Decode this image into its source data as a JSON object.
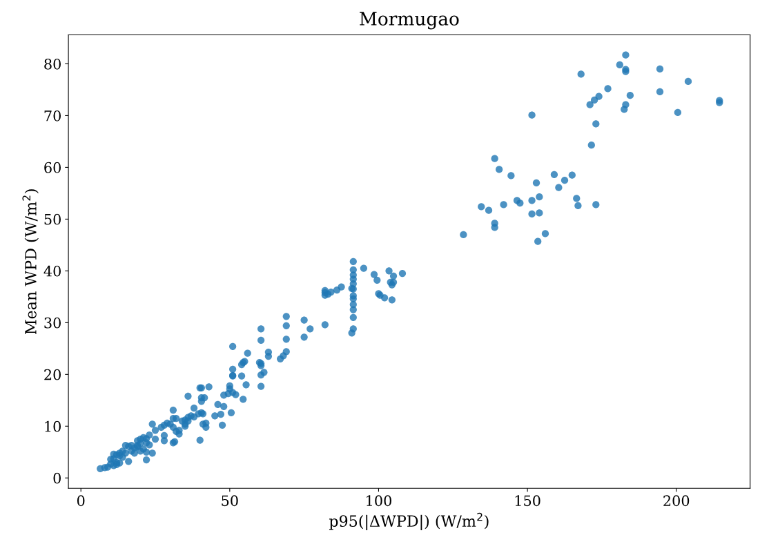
{
  "chart_data": {
    "type": "scatter",
    "title": "Mormugao",
    "xlabel": "p95(|ΔWPD|) (W/m$^{2}$)",
    "ylabel": "Mean WPD (W/m$^{2}$)",
    "xlim": [
      -4.2,
      224.8
    ],
    "ylim": [
      -2.0,
      85.6
    ],
    "xticks": [
      0,
      50,
      100,
      150,
      200
    ],
    "yticks": [
      0,
      10,
      20,
      30,
      40,
      50,
      60,
      70,
      80
    ],
    "grid": false,
    "marker": "circle",
    "series": [
      {
        "color": "#1f77b4",
        "x": [
          128.5,
          134.5,
          137,
          139,
          139,
          139,
          140.5,
          142,
          144.5,
          146.5,
          147.5,
          151.5,
          151.5,
          151.5,
          153,
          153.5,
          154,
          154,
          156,
          159,
          160.5,
          162.5,
          165,
          166.5,
          167,
          168,
          171,
          171.5,
          172.5,
          173,
          173,
          174,
          177,
          181,
          182.5,
          183,
          183,
          183,
          183,
          184.5,
          194.5,
          194.5,
          200.5,
          204,
          214.5,
          214.5,
          82,
          82,
          82,
          83,
          84,
          86,
          87.5,
          82,
          91,
          91.5,
          91.5,
          91.5,
          91.5,
          91.5,
          91.5,
          91.5,
          91.5,
          91.5,
          91.5,
          91.5,
          91.5,
          91,
          95,
          98.5,
          99.5,
          100,
          100.5,
          102,
          103.5,
          104,
          104.5,
          104.5,
          105,
          105,
          108,
          75,
          75,
          77,
          69,
          69,
          69,
          69,
          68,
          67,
          63,
          63,
          60.5,
          60.5,
          60.5,
          60.5,
          60,
          60.5,
          61.5,
          60.5,
          56,
          55,
          54,
          54.5,
          54,
          55.5,
          54.5,
          51,
          51,
          51,
          51,
          50,
          50,
          49.5,
          51,
          52,
          50.5,
          48,
          47.5,
          48,
          46,
          45,
          47,
          40.5,
          40,
          43,
          41.5,
          40.5,
          40.5,
          39.5,
          40.5,
          41,
          41,
          42,
          42,
          40,
          36,
          38,
          36,
          37,
          35,
          34,
          35,
          32,
          31,
          31,
          31,
          31.5,
          31,
          33,
          32,
          30,
          29,
          28,
          28,
          28,
          27,
          24,
          25,
          24,
          22,
          23,
          22,
          21,
          20,
          20,
          19,
          19,
          18,
          17,
          17,
          16,
          15,
          15,
          16,
          14,
          13,
          13,
          12,
          11,
          11,
          12,
          12,
          13,
          10,
          10,
          9,
          8,
          6.5,
          11,
          14,
          18,
          20,
          21,
          22,
          23,
          25,
          19,
          22,
          33,
          35,
          36,
          38
        ],
        "values": [
          47,
          52.4,
          51.7,
          61.7,
          49.2,
          48.4,
          59.6,
          52.8,
          58.4,
          53.6,
          53.1,
          70.1,
          53.6,
          51,
          57,
          45.7,
          54.3,
          51.2,
          47.2,
          58.6,
          56.1,
          57.5,
          58.5,
          54,
          52.6,
          78,
          72.1,
          64.3,
          73,
          68.4,
          52.8,
          73.7,
          75.2,
          79.8,
          71.2,
          72.1,
          78.5,
          81.7,
          78.9,
          73.9,
          79,
          74.6,
          70.6,
          76.6,
          72.9,
          72.5,
          35.3,
          35.8,
          36.2,
          35.5,
          35.9,
          36.3,
          36.9,
          29.6,
          28,
          28.8,
          31,
          32.5,
          33.5,
          34.6,
          35.2,
          36.5,
          37.5,
          38.4,
          39.2,
          40.2,
          41.8,
          36.6,
          40.5,
          39.3,
          38.2,
          35.6,
          35.3,
          34.8,
          40,
          37.8,
          34.4,
          37.3,
          37.8,
          39,
          39.5,
          30.5,
          27.2,
          28.8,
          31.2,
          29.4,
          26.8,
          24.4,
          23.6,
          23,
          24.3,
          23.5,
          28.8,
          26.6,
          22.1,
          21.7,
          22.3,
          19.9,
          20.4,
          17.7,
          24.1,
          22.5,
          21.9,
          22.3,
          19.7,
          18,
          15.2,
          25.4,
          21,
          19.8,
          19.7,
          17.8,
          17.2,
          16.3,
          16.5,
          16.1,
          12.6,
          16,
          10.2,
          13.8,
          14.2,
          12,
          12.3,
          17.4,
          17.4,
          17.6,
          15.5,
          14.8,
          15.5,
          12.4,
          12.6,
          12.4,
          10.4,
          10.6,
          9.8,
          7.3,
          15.8,
          13.5,
          11.7,
          12,
          11.2,
          11,
          10,
          11.5,
          13.1,
          11.5,
          9.8,
          7,
          6.8,
          8.5,
          9,
          10.4,
          10.6,
          10.2,
          8.2,
          7.2,
          9.8,
          10.4,
          9.2,
          4.8,
          3.5,
          8.3,
          7.6,
          7.8,
          7.5,
          6.7,
          6.3,
          7.2,
          5.8,
          5.2,
          6.3,
          6.1,
          6.3,
          4.8,
          3.2,
          5.2,
          4.8,
          4.3,
          4.5,
          4.6,
          3.7,
          3,
          2.6,
          2.9,
          3.6,
          2.7,
          2.1,
          2.0,
          1.8,
          2.4,
          4,
          4.8,
          5.2,
          5.6,
          5.0,
          6.4,
          7.5,
          6.0,
          6.8,
          9.2,
          10.4,
          11,
          11.8
        ]
      }
    ]
  }
}
